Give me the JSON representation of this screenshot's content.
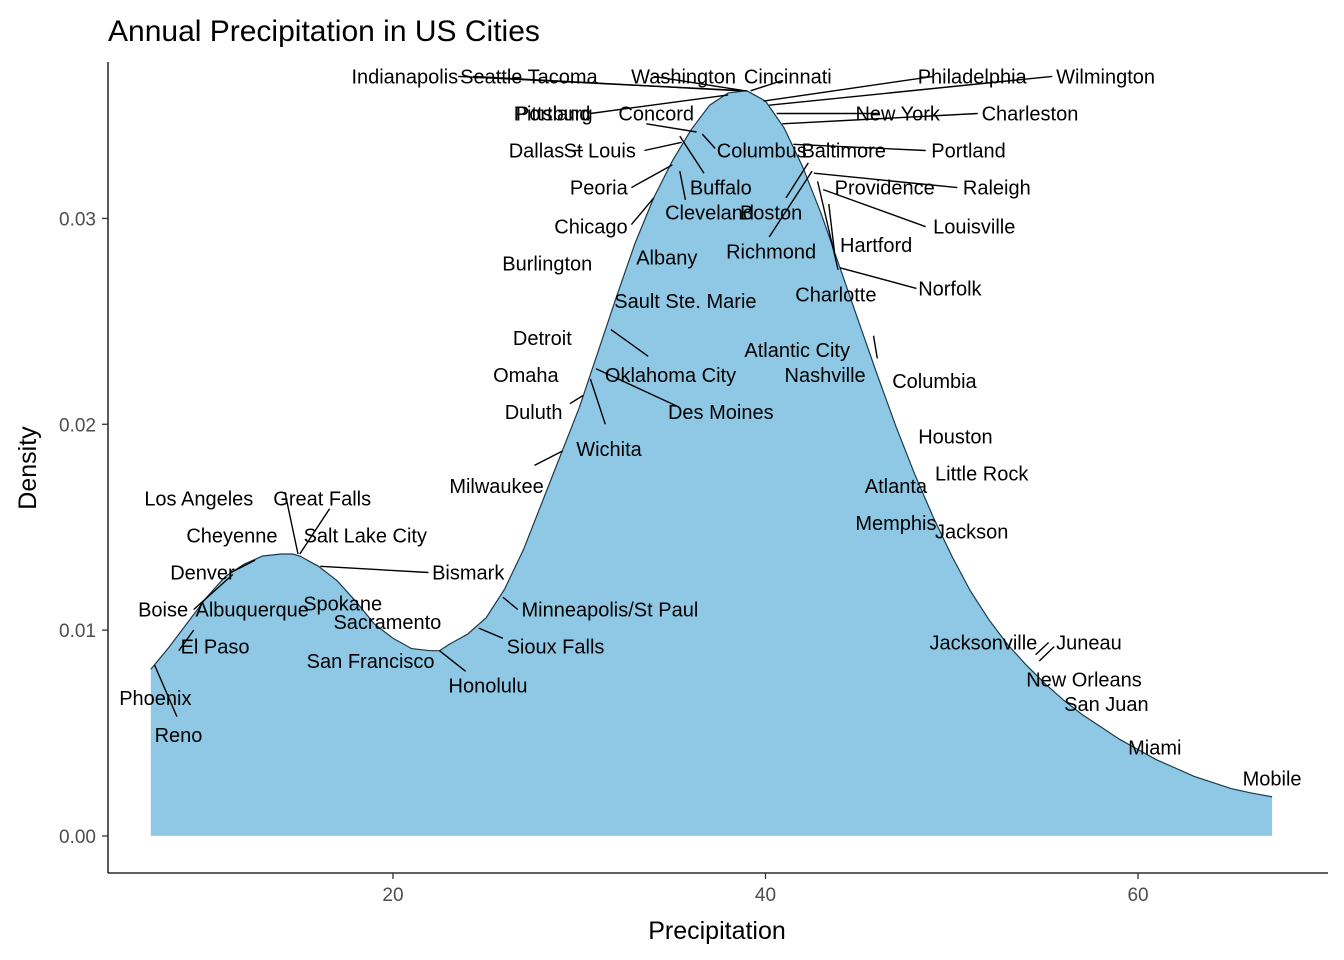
{
  "chart_data": {
    "type": "area",
    "title": "Annual Precipitation in US Cities",
    "xlabel": "Precipitation",
    "ylabel": "Density",
    "xlim": [
      4.7,
      70.2
    ],
    "ylim": [
      -0.0018,
      0.0376
    ],
    "x_ticks": [
      20,
      40,
      60
    ],
    "y_ticks": [
      0.0,
      0.01,
      0.02,
      0.03
    ],
    "y_tick_labels": [
      "0.00",
      "0.01",
      "0.02",
      "0.03"
    ],
    "grid": false,
    "fill_color": "#8fc8e4",
    "outline_color": "#1a3a4a",
    "density": {
      "x": [
        7.0,
        8.0,
        9.0,
        10.0,
        11.0,
        12.0,
        13.0,
        14.0,
        14.6,
        15.0,
        16.0,
        17.0,
        18.0,
        19.0,
        20.0,
        21.0,
        22.0,
        22.5,
        23.0,
        24.0,
        25.0,
        26.0,
        27.0,
        28.0,
        29.0,
        30.0,
        31.0,
        32.0,
        33.0,
        34.0,
        35.0,
        36.0,
        37.0,
        38.0,
        39.0,
        40.0,
        41.0,
        42.0,
        43.0,
        44.0,
        45.0,
        46.0,
        47.0,
        48.0,
        49.0,
        50.0,
        51.0,
        52.0,
        53.0,
        54.0,
        55.0,
        56.0,
        57.0,
        58.0,
        59.0,
        60.0,
        61.0,
        62.0,
        63.0,
        64.0,
        65.0,
        66.0,
        67.2
      ],
      "y": [
        0.0081,
        0.0092,
        0.0104,
        0.0116,
        0.0126,
        0.0132,
        0.0136,
        0.0137,
        0.0137,
        0.0136,
        0.0131,
        0.0124,
        0.0114,
        0.0103,
        0.0096,
        0.0091,
        0.009,
        0.009,
        0.0093,
        0.0098,
        0.0106,
        0.012,
        0.0139,
        0.0162,
        0.0185,
        0.0208,
        0.0235,
        0.0262,
        0.0288,
        0.031,
        0.0328,
        0.0343,
        0.0355,
        0.0361,
        0.0362,
        0.0357,
        0.0344,
        0.0325,
        0.0302,
        0.0276,
        0.025,
        0.0224,
        0.0199,
        0.0176,
        0.0155,
        0.0136,
        0.0119,
        0.0105,
        0.0093,
        0.0083,
        0.0074,
        0.0066,
        0.0059,
        0.0053,
        0.0047,
        0.0042,
        0.0037,
        0.0033,
        0.0029,
        0.0026,
        0.0023,
        0.0021,
        0.0019
      ]
    },
    "cities": [
      {
        "name": "Indianapolis",
        "x": 39.0,
        "y": 0.0362,
        "lx": 23.5,
        "ly": 0.0369,
        "anchor": "end"
      },
      {
        "name": "Seattle Tacoma",
        "x": 38.6,
        "y": 0.0362,
        "lx": 27.3,
        "ly": 0.0369,
        "anchor": "middle"
      },
      {
        "name": "Washington",
        "x": 38.9,
        "y": 0.0362,
        "lx": 35.6,
        "ly": 0.0369,
        "anchor": "middle"
      },
      {
        "name": "Cincinnati",
        "x": 39.2,
        "y": 0.0362,
        "lx": 41.2,
        "ly": 0.0369,
        "anchor": "middle"
      },
      {
        "name": "Philadelphia",
        "x": 39.9,
        "y": 0.0357,
        "lx": 51.1,
        "ly": 0.0369,
        "anchor": "middle"
      },
      {
        "name": "Wilmington",
        "x": 40.2,
        "y": 0.0355,
        "lx": 55.6,
        "ly": 0.0369,
        "anchor": "start"
      },
      {
        "name": "Portland",
        "x": 37.3,
        "y": 0.0358,
        "lx": 30.6,
        "ly": 0.0351,
        "anchor": "end"
      },
      {
        "name": "Pittsburg",
        "x": 38.0,
        "y": 0.036,
        "lx": 28.6,
        "ly": 0.0351,
        "anchor": "middle"
      },
      {
        "name": "Concord",
        "x": 36.3,
        "y": 0.0346,
        "lx": 32.1,
        "ly": 0.0351,
        "anchor": "start"
      },
      {
        "name": "New York",
        "x": 40.6,
        "y": 0.0351,
        "lx": 47.1,
        "ly": 0.0351,
        "anchor": "middle"
      },
      {
        "name": "Charleston",
        "x": 40.9,
        "y": 0.0346,
        "lx": 51.6,
        "ly": 0.0351,
        "anchor": "start"
      },
      {
        "name": "Columbus",
        "x": 36.8,
        "y": 0.035,
        "lx": 39.8,
        "ly": 0.0333,
        "anchor": "middle"
      },
      {
        "name": "Dallas",
        "x": 35.1,
        "y": 0.033,
        "lx": 29.2,
        "ly": 0.0333,
        "anchor": "end"
      },
      {
        "name": "St Louis",
        "x": 35.5,
        "y": 0.0335,
        "lx": 31.1,
        "ly": 0.0333,
        "anchor": "middle"
      },
      {
        "name": "Baltimore",
        "x": 41.3,
        "y": 0.0339,
        "lx": 44.2,
        "ly": 0.0333,
        "anchor": "middle"
      },
      {
        "name": "Portland",
        "x": 41.5,
        "y": 0.0336,
        "lx": 48.9,
        "ly": 0.0333,
        "anchor": "start"
      },
      {
        "name": "Buffalo",
        "x": 36.3,
        "y": 0.0346,
        "lx": 37.6,
        "ly": 0.0315,
        "anchor": "middle"
      },
      {
        "name": "Peoria",
        "x": 35.0,
        "y": 0.0326,
        "lx": 32.6,
        "ly": 0.0315,
        "anchor": "end"
      },
      {
        "name": "Providence",
        "x": 42.3,
        "y": 0.0327,
        "lx": 46.4,
        "ly": 0.0315,
        "anchor": "middle"
      },
      {
        "name": "Raleigh",
        "x": 42.6,
        "y": 0.0322,
        "lx": 50.6,
        "ly": 0.0315,
        "anchor": "start"
      },
      {
        "name": "Chicago",
        "x": 34.0,
        "y": 0.031,
        "lx": 32.6,
        "ly": 0.0296,
        "anchor": "end"
      },
      {
        "name": "Cleveland",
        "x": 35.4,
        "y": 0.0333,
        "lx": 37.0,
        "ly": 0.0303,
        "anchor": "middle"
      },
      {
        "name": "Boston",
        "x": 42.3,
        "y": 0.0327,
        "lx": 40.3,
        "ly": 0.0303,
        "anchor": "middle"
      },
      {
        "name": "Louisville",
        "x": 43.1,
        "y": 0.0314,
        "lx": 49.0,
        "ly": 0.0296,
        "anchor": "start"
      },
      {
        "name": "Burlington",
        "x": 31.9,
        "y": 0.0259,
        "lx": 30.7,
        "ly": 0.0278,
        "anchor": "end"
      },
      {
        "name": "Albany",
        "x": 33.5,
        "y": 0.03,
        "lx": 34.7,
        "ly": 0.0281,
        "anchor": "middle"
      },
      {
        "name": "Richmond",
        "x": 42.5,
        "y": 0.0323,
        "lx": 40.3,
        "ly": 0.0284,
        "anchor": "middle"
      },
      {
        "name": "Hartford",
        "x": 43.4,
        "y": 0.0307,
        "lx": 44.0,
        "ly": 0.0287,
        "anchor": "start"
      },
      {
        "name": "Sault Ste. Marie",
        "x": 33.3,
        "y": 0.03,
        "lx": 35.7,
        "ly": 0.026,
        "anchor": "middle"
      },
      {
        "name": "Charlotte",
        "x": 42.8,
        "y": 0.0318,
        "lx": 41.6,
        "ly": 0.0263,
        "anchor": "start"
      },
      {
        "name": "Norfolk",
        "x": 44.0,
        "y": 0.0276,
        "lx": 48.2,
        "ly": 0.0266,
        "anchor": "start"
      },
      {
        "name": "Detroit",
        "x": 31.7,
        "y": 0.0246,
        "lx": 29.6,
        "ly": 0.0242,
        "anchor": "end"
      },
      {
        "name": "Atlantic City",
        "x": 44.8,
        "y": 0.0256,
        "lx": 41.7,
        "ly": 0.0236,
        "anchor": "middle"
      },
      {
        "name": "Omaha",
        "x": 30.2,
        "y": 0.0214,
        "lx": 28.9,
        "ly": 0.0224,
        "anchor": "end"
      },
      {
        "name": "Oklahoma City",
        "x": 31.6,
        "y": 0.0245,
        "lx": 34.9,
        "ly": 0.0224,
        "anchor": "middle"
      },
      {
        "name": "Nashville",
        "x": 45.8,
        "y": 0.0229,
        "lx": 43.2,
        "ly": 0.0224,
        "anchor": "middle"
      },
      {
        "name": "Columbia",
        "x": 45.9,
        "y": 0.0226,
        "lx": 46.8,
        "ly": 0.0221,
        "anchor": "start"
      },
      {
        "name": "Duluth",
        "x": 30.3,
        "y": 0.0216,
        "lx": 29.1,
        "ly": 0.0206,
        "anchor": "end"
      },
      {
        "name": "Des Moines",
        "x": 30.9,
        "y": 0.0227,
        "lx": 37.6,
        "ly": 0.0206,
        "anchor": "middle"
      },
      {
        "name": "Wichita",
        "x": 30.6,
        "y": 0.0222,
        "lx": 31.6,
        "ly": 0.0188,
        "anchor": "middle"
      },
      {
        "name": "Houston",
        "x": 48.2,
        "y": 0.0171,
        "lx": 48.2,
        "ly": 0.0194,
        "anchor": "start"
      },
      {
        "name": "Little Rock",
        "x": 48.6,
        "y": 0.0168,
        "lx": 49.1,
        "ly": 0.0176,
        "anchor": "start"
      },
      {
        "name": "Milwaukee",
        "x": 29.1,
        "y": 0.0187,
        "lx": 28.1,
        "ly": 0.017,
        "anchor": "end"
      },
      {
        "name": "Atlanta",
        "x": 48.4,
        "y": 0.0168,
        "lx": 47.0,
        "ly": 0.017,
        "anchor": "middle"
      },
      {
        "name": "Los Angeles",
        "x": 14.9,
        "y": 0.0136,
        "lx": 12.5,
        "ly": 0.0164,
        "anchor": "end"
      },
      {
        "name": "Great Falls",
        "x": 15.0,
        "y": 0.0137,
        "lx": 16.2,
        "ly": 0.0164,
        "anchor": "middle"
      },
      {
        "name": "Memphis",
        "x": 49.1,
        "y": 0.0156,
        "lx": 47.0,
        "ly": 0.0152,
        "anchor": "middle"
      },
      {
        "name": "Jackson",
        "x": 49.0,
        "y": 0.0155,
        "lx": 49.1,
        "ly": 0.0148,
        "anchor": "start"
      },
      {
        "name": "Cheyenne",
        "x": 14.6,
        "y": 0.0137,
        "lx": 13.8,
        "ly": 0.0146,
        "anchor": "end"
      },
      {
        "name": "Salt Lake City",
        "x": 15.2,
        "y": 0.0136,
        "lx": 15.2,
        "ly": 0.0146,
        "anchor": "start"
      },
      {
        "name": "Denver",
        "x": 13.0,
        "y": 0.0132,
        "lx": 11.5,
        "ly": 0.0128,
        "anchor": "end"
      },
      {
        "name": "Bismark",
        "x": 16.1,
        "y": 0.0131,
        "lx": 22.1,
        "ly": 0.0128,
        "anchor": "start"
      },
      {
        "name": "Boise",
        "x": 11.4,
        "y": 0.0127,
        "lx": 9.0,
        "ly": 0.011,
        "anchor": "end"
      },
      {
        "name": "Albuquerque",
        "x": 7.8,
        "y": 0.009,
        "lx": 9.4,
        "ly": 0.011,
        "anchor": "start"
      },
      {
        "name": "Spokane",
        "x": 17.4,
        "y": 0.012,
        "lx": 17.3,
        "ly": 0.0113,
        "anchor": "middle"
      },
      {
        "name": "Minneapolis/St Paul",
        "x": 25.9,
        "y": 0.0116,
        "lx": 26.9,
        "ly": 0.011,
        "anchor": "start"
      },
      {
        "name": "Sacramento",
        "x": 17.2,
        "y": 0.012,
        "lx": 19.7,
        "ly": 0.0104,
        "anchor": "middle"
      },
      {
        "name": "El Paso",
        "x": 7.8,
        "y": 0.0089,
        "lx": 8.6,
        "ly": 0.0092,
        "anchor": "start"
      },
      {
        "name": "Sioux Falls",
        "x": 24.6,
        "y": 0.0101,
        "lx": 26.1,
        "ly": 0.0092,
        "anchor": "start"
      },
      {
        "name": "Jacksonville",
        "x": 54.5,
        "y": 0.0078,
        "lx": 51.7,
        "ly": 0.0094,
        "anchor": "middle"
      },
      {
        "name": "Juneau",
        "x": 54.7,
        "y": 0.0075,
        "lx": 55.6,
        "ly": 0.0094,
        "anchor": "start"
      },
      {
        "name": "San Francisco",
        "x": 20.7,
        "y": 0.0092,
        "lx": 18.8,
        "ly": 0.0085,
        "anchor": "middle"
      },
      {
        "name": "Phoenix",
        "x": 7.1,
        "y": 0.0082,
        "lx": 5.3,
        "ly": 0.0067,
        "anchor": "start"
      },
      {
        "name": "Honolulu",
        "x": 22.5,
        "y": 0.009,
        "lx": 25.1,
        "ly": 0.0073,
        "anchor": "middle"
      },
      {
        "name": "New Orleans",
        "x": 56.2,
        "y": 0.0066,
        "lx": 57.1,
        "ly": 0.0076,
        "anchor": "middle"
      },
      {
        "name": "Reno",
        "x": 7.2,
        "y": 0.0083,
        "lx": 7.2,
        "ly": 0.0049,
        "anchor": "start"
      },
      {
        "name": "San Juan",
        "x": 59.2,
        "y": 0.0046,
        "lx": 58.3,
        "ly": 0.0064,
        "anchor": "middle"
      },
      {
        "name": "Miami",
        "x": 59.8,
        "y": 0.0043,
        "lx": 60.9,
        "ly": 0.0043,
        "anchor": "middle"
      },
      {
        "name": "Mobile",
        "x": 67.0,
        "y": 0.002,
        "lx": 67.2,
        "ly": 0.0028,
        "anchor": "middle"
      }
    ],
    "leaders": [
      {
        "x1": 23.5,
        "y1": 0.0369,
        "x2": 39.0,
        "y2": 0.0362
      },
      {
        "x1": 24.3,
        "y1": 0.0369,
        "x2": 38.6,
        "y2": 0.0362
      },
      {
        "x1": 34.0,
        "y1": 0.0369,
        "x2": 38.9,
        "y2": 0.0362
      },
      {
        "x1": 40.9,
        "y1": 0.0367,
        "x2": 39.2,
        "y2": 0.0362
      },
      {
        "x1": 49.0,
        "y1": 0.0369,
        "x2": 39.9,
        "y2": 0.0357
      },
      {
        "x1": 55.4,
        "y1": 0.0369,
        "x2": 40.2,
        "y2": 0.0355
      },
      {
        "x1": 30.6,
        "y1": 0.0351,
        "x2": 38.0,
        "y2": 0.036
      },
      {
        "x1": 33.6,
        "y1": 0.0346,
        "x2": 36.3,
        "y2": 0.0342
      },
      {
        "x1": 46.1,
        "y1": 0.0351,
        "x2": 40.6,
        "y2": 0.0351
      },
      {
        "x1": 51.4,
        "y1": 0.0351,
        "x2": 40.9,
        "y2": 0.0346
      },
      {
        "x1": 29.4,
        "y1": 0.0333,
        "x2": 30.2,
        "y2": 0.0333
      },
      {
        "x1": 33.5,
        "y1": 0.0333,
        "x2": 35.5,
        "y2": 0.0337
      },
      {
        "x1": 48.6,
        "y1": 0.0333,
        "x2": 41.5,
        "y2": 0.0336
      },
      {
        "x1": 36.7,
        "y1": 0.0322,
        "x2": 35.4,
        "y2": 0.034
      },
      {
        "x1": 37.3,
        "y1": 0.0334,
        "x2": 36.6,
        "y2": 0.0341
      },
      {
        "x1": 32.8,
        "y1": 0.0315,
        "x2": 35.0,
        "y2": 0.0326
      },
      {
        "x1": 50.3,
        "y1": 0.0315,
        "x2": 42.6,
        "y2": 0.0322
      },
      {
        "x1": 32.8,
        "y1": 0.0297,
        "x2": 34.0,
        "y2": 0.031
      },
      {
        "x1": 35.7,
        "y1": 0.0309,
        "x2": 35.4,
        "y2": 0.0323
      },
      {
        "x1": 41.1,
        "y1": 0.031,
        "x2": 42.3,
        "y2": 0.0327
      },
      {
        "x1": 48.6,
        "y1": 0.0296,
        "x2": 43.1,
        "y2": 0.0314
      },
      {
        "x1": 40.2,
        "y1": 0.0291,
        "x2": 42.5,
        "y2": 0.0323
      },
      {
        "x1": 43.7,
        "y1": 0.0284,
        "x2": 43.4,
        "y2": 0.0307
      },
      {
        "x1": 43.9,
        "y1": 0.0275,
        "x2": 42.8,
        "y2": 0.0318
      },
      {
        "x1": 48.1,
        "y1": 0.0266,
        "x2": 44.0,
        "y2": 0.0276
      },
      {
        "x1": 33.7,
        "y1": 0.0233,
        "x2": 31.7,
        "y2": 0.0246
      },
      {
        "x1": 46.0,
        "y1": 0.0232,
        "x2": 45.8,
        "y2": 0.0243
      },
      {
        "x1": 29.5,
        "y1": 0.021,
        "x2": 30.2,
        "y2": 0.0214
      },
      {
        "x1": 35.2,
        "y1": 0.0209,
        "x2": 30.9,
        "y2": 0.0227
      },
      {
        "x1": 31.4,
        "y1": 0.02,
        "x2": 30.6,
        "y2": 0.0222
      },
      {
        "x1": 27.6,
        "y1": 0.018,
        "x2": 29.1,
        "y2": 0.0187
      },
      {
        "x1": 14.2,
        "y1": 0.0167,
        "x2": 14.9,
        "y2": 0.0137
      },
      {
        "x1": 16.6,
        "y1": 0.0159,
        "x2": 15.0,
        "y2": 0.0137
      },
      {
        "x1": 12.6,
        "y1": 0.0134,
        "x2": 11.3,
        "y2": 0.0128
      },
      {
        "x1": 21.9,
        "y1": 0.0128,
        "x2": 16.1,
        "y2": 0.0131
      },
      {
        "x1": 9.3,
        "y1": 0.011,
        "x2": 11.4,
        "y2": 0.0127
      },
      {
        "x1": 26.7,
        "y1": 0.011,
        "x2": 25.9,
        "y2": 0.0116
      },
      {
        "x1": 9.3,
        "y1": 0.01,
        "x2": 8.5,
        "y2": 0.009
      },
      {
        "x1": 25.9,
        "y1": 0.0096,
        "x2": 24.6,
        "y2": 0.0101
      },
      {
        "x1": 23.9,
        "y1": 0.008,
        "x2": 22.5,
        "y2": 0.009
      },
      {
        "x1": 55.2,
        "y1": 0.0094,
        "x2": 54.5,
        "y2": 0.0088
      },
      {
        "x1": 55.5,
        "y1": 0.0092,
        "x2": 54.7,
        "y2": 0.0085
      },
      {
        "x1": 8.4,
        "y1": 0.0058,
        "x2": 7.2,
        "y2": 0.0083
      }
    ]
  }
}
